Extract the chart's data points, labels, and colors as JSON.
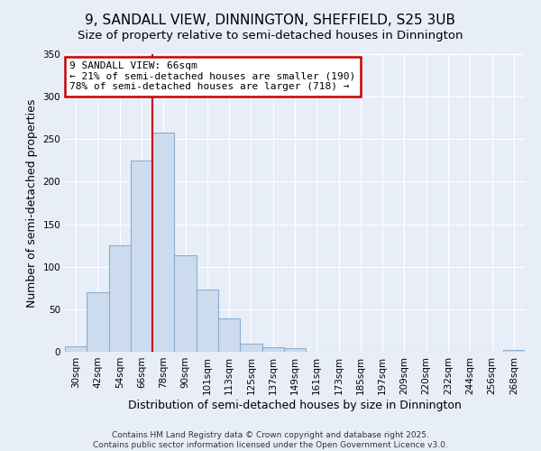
{
  "title": "9, SANDALL VIEW, DINNINGTON, SHEFFIELD, S25 3UB",
  "subtitle": "Size of property relative to semi-detached houses in Dinnington",
  "xlabel": "Distribution of semi-detached houses by size in Dinnington",
  "ylabel": "Number of semi-detached properties",
  "bin_labels": [
    "30sqm",
    "42sqm",
    "54sqm",
    "66sqm",
    "78sqm",
    "90sqm",
    "101sqm",
    "113sqm",
    "125sqm",
    "137sqm",
    "149sqm",
    "161sqm",
    "173sqm",
    "185sqm",
    "197sqm",
    "209sqm",
    "220sqm",
    "232sqm",
    "244sqm",
    "256sqm",
    "268sqm"
  ],
  "bar_values": [
    6,
    70,
    125,
    225,
    258,
    113,
    73,
    39,
    10,
    5,
    4,
    0,
    0,
    0,
    0,
    0,
    0,
    0,
    0,
    0,
    2
  ],
  "bar_color": "#ccdcee",
  "bar_edge_color": "#89aece",
  "ylim": [
    0,
    350
  ],
  "yticks": [
    0,
    50,
    100,
    150,
    200,
    250,
    300,
    350
  ],
  "vline_x_index": 3,
  "vline_color": "#cc0000",
  "annotation_title": "9 SANDALL VIEW: 66sqm",
  "annotation_line1": "← 21% of semi-detached houses are smaller (190)",
  "annotation_line2": "78% of semi-detached houses are larger (718) →",
  "annotation_box_facecolor": "#ffffff",
  "annotation_box_edge": "#cc0000",
  "footer1": "Contains HM Land Registry data © Crown copyright and database right 2025.",
  "footer2": "Contains public sector information licensed under the Open Government Licence v3.0.",
  "bg_color": "#e8eef8",
  "plot_bg_color": "#e8eef8",
  "title_fontsize": 11,
  "subtitle_fontsize": 9.5,
  "axis_label_fontsize": 9,
  "tick_fontsize": 7.5,
  "footer_fontsize": 6.5,
  "annotation_fontsize": 8
}
